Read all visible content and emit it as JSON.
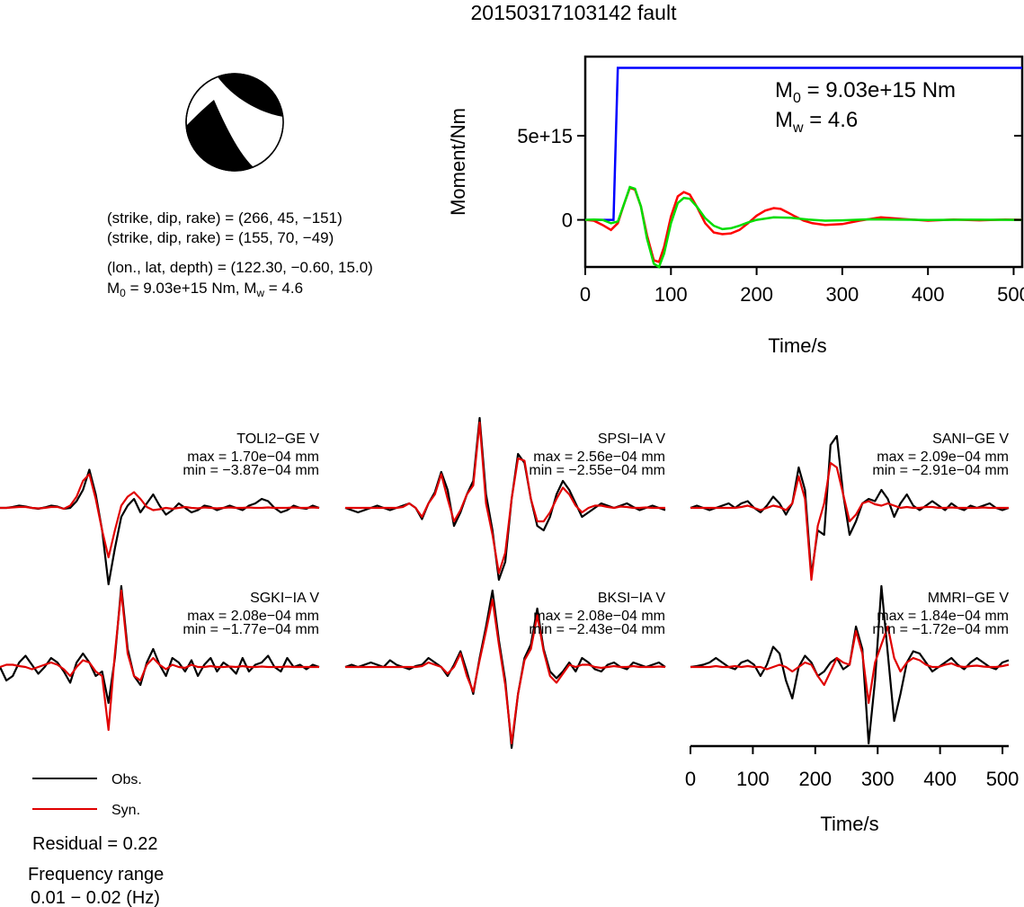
{
  "title": "20150317103142 fault",
  "mechanism": {
    "plane1": "(strike, dip, rake) = (266, 45, −151)",
    "plane2": "(strike, dip, rake) = (155, 70, −49)",
    "location": "(lon., lat, depth) = (122.30, −0.60, 15.0)",
    "m0_prefix": "M",
    "m0_sub": "0",
    "m0_value": " = 9.03e+15 Nm, M",
    "mw_sub": "w",
    "mw_value": " = 4.6",
    "strike": 266,
    "dip": 45,
    "rake": -151
  },
  "moment_panel": {
    "ylabel": "Moment/Nm",
    "xlabel": "Time/s",
    "m0_label": "M",
    "m0_sub": "0",
    "m0_text": " = 9.03e+15 Nm",
    "mw_label": "M",
    "mw_sub": "w",
    "mw_text": " = 4.6"
  },
  "chart_data": [
    {
      "type": "line",
      "title": "",
      "xlabel": "Time/s",
      "ylabel": "Moment/Nm",
      "xlim": [
        0,
        510
      ],
      "ylim": [
        -2800000000000000.0,
        9700000000000000.0
      ],
      "xticks": [
        "0",
        "100",
        "200",
        "300",
        "400",
        "500"
      ],
      "xtick_values": [
        0,
        100,
        200,
        300,
        400,
        500
      ],
      "yticks": [
        "0",
        "5e+15"
      ],
      "ytick_values": [
        0,
        5000000000000000.0
      ],
      "series": [
        {
          "color": "#0000ff",
          "x": [
            0,
            33,
            38,
            510
          ],
          "y": [
            0,
            0,
            9030000000000000.0,
            9030000000000000.0
          ]
        },
        {
          "color": "#ff0000",
          "x": [
            0,
            10,
            20,
            30,
            38,
            45,
            52,
            58,
            65,
            72,
            80,
            86,
            92,
            100,
            108,
            115,
            122,
            130,
            140,
            150,
            160,
            170,
            180,
            190,
            200,
            210,
            220,
            228,
            236,
            245,
            255,
            265,
            280,
            300,
            320,
            345,
            370,
            400,
            430,
            460,
            490,
            510
          ],
          "y": [
            0,
            -50000000000000.0,
            -300000000000000.0,
            -600000000000000.0,
            -200000000000000.0,
            900000000000000.0,
            1900000000000000.0,
            1800000000000000.0,
            800000000000000.0,
            -900000000000000.0,
            -2400000000000000.0,
            -2500000000000000.0,
            -1600000000000000.0,
            200000000000000.0,
            1400000000000000.0,
            1650000000000000.0,
            1500000000000000.0,
            800000000000000.0,
            -200000000000000.0,
            -750000000000000.0,
            -850000000000000.0,
            -800000000000000.0,
            -600000000000000.0,
            -200000000000000.0,
            250000000000000.0,
            550000000000000.0,
            700000000000000.0,
            650000000000000.0,
            450000000000000.0,
            200000000000000.0,
            -50000000000000.0,
            -200000000000000.0,
            -300000000000000.0,
            -250000000000000.0,
            -50000000000000.0,
            150000000000000.0,
            50000000000000.0,
            -50000000000000.0,
            20000000000000.0,
            -30000000000000.0,
            20000000000000.0,
            0
          ]
        },
        {
          "color": "#00dd00",
          "x": [
            0,
            10,
            20,
            30,
            38,
            45,
            52,
            58,
            65,
            72,
            80,
            86,
            92,
            100,
            108,
            115,
            122,
            130,
            140,
            150,
            160,
            170,
            180,
            190,
            200,
            220,
            240,
            260,
            280,
            300,
            330,
            360,
            400,
            450,
            510
          ],
          "y": [
            0,
            20000000000000.0,
            0.0,
            -200000000000000.0,
            -100000000000000.0,
            900000000000000.0,
            1950000000000000.0,
            1850000000000000.0,
            800000000000000.0,
            -1100000000000000.0,
            -2600000000000000.0,
            -2800000000000000.0,
            -2000000000000000.0,
            -200000000000000.0,
            1000000000000000.0,
            1300000000000000.0,
            1250000000000000.0,
            800000000000000.0,
            100000000000000.0,
            -350000000000000.0,
            -550000000000000.0,
            -500000000000000.0,
            -350000000000000.0,
            -150000000000000.0,
            0.0,
            150000000000000.0,
            120000000000000.0,
            20000000000000.0,
            -50000000000000.0,
            -30000000000000.0,
            30000000000000.0,
            20000000000000.0,
            -10000000000000.0,
            10000000000000.0,
            0
          ]
        }
      ]
    },
    {
      "type": "line",
      "title": "",
      "stations": [
        {
          "name": "TOLI2−GE V",
          "max": "max = 1.70e−04 mm",
          "min": "min = −3.87e−04 mm",
          "obs": [
            0,
            0,
            0.02,
            0.05,
            0.03,
            0,
            -0.02,
            0.01,
            0.05,
            0.03,
            -0.02,
            0,
            0.15,
            0.4,
            0.85,
            0.3,
            -0.5,
            -1.7,
            -0.9,
            -0.2,
            0.05,
            0.2,
            -0.1,
            0.1,
            0.3,
            0.05,
            -0.15,
            -0.05,
            0.1,
            0,
            -0.1,
            -0.05,
            0.05,
            0.02,
            -0.05,
            0,
            0.05,
            0,
            -0.05,
            0.05,
            0.1,
            0.2,
            0.15,
            0,
            -0.1,
            -0.05,
            0.05,
            0,
            -0.02,
            0.05,
            0
          ],
          "syn": [
            0,
            0,
            0.01,
            0.02,
            0.02,
            0,
            -0.01,
            0,
            0.02,
            0.02,
            -0.02,
            0.05,
            0.25,
            0.6,
            0.75,
            0.2,
            -0.5,
            -1.1,
            -0.5,
            0.05,
            0.25,
            0.35,
            0.2,
            0.02,
            -0.05,
            -0.03,
            0,
            -0.02,
            0,
            0.02,
            0,
            -0.01,
            0.01,
            0,
            -0.01,
            0,
            0.01,
            0,
            0,
            0.01,
            0,
            0,
            0.01,
            0,
            0,
            0,
            0.01,
            0,
            0,
            0.01,
            0
          ]
        },
        {
          "name": "SPSI−IA V",
          "max": "max = 2.56e−04 mm",
          "min": "min = −2.55e−04 mm",
          "obs": [
            0,
            -0.05,
            -0.1,
            -0.05,
            0,
            0.05,
            0,
            -0.05,
            0,
            0.05,
            0.1,
            0,
            -0.25,
            0.1,
            0.35,
            0.8,
            0.4,
            -0.4,
            -0.1,
            0.3,
            0.6,
            2.0,
            0.3,
            -0.5,
            -1.6,
            -1.2,
            0.2,
            1.2,
            1.0,
            0.2,
            -0.4,
            -0.5,
            -0.2,
            0.3,
            0.6,
            0.4,
            0.1,
            -0.2,
            -0.1,
            0,
            0.1,
            0.05,
            0,
            0.05,
            0.1,
            0.02,
            -0.05,
            0,
            0.05,
            0,
            -0.05
          ],
          "syn": [
            0,
            0,
            0,
            0,
            0,
            0,
            0,
            0,
            0,
            0.02,
            0.1,
            0,
            -0.2,
            0.1,
            0.3,
            0.75,
            0.2,
            -0.3,
            -0.05,
            0.3,
            0.5,
            1.9,
            0.1,
            -0.6,
            -1.45,
            -1.0,
            0.2,
            1.1,
            1.05,
            0.2,
            -0.3,
            -0.3,
            -0.1,
            0.2,
            0.45,
            0.3,
            0.05,
            -0.1,
            0,
            0.05,
            0.05,
            0.02,
            0,
            0.03,
            0.02,
            0,
            0,
            0.01,
            0,
            0,
            0
          ]
        },
        {
          "name": "SANI−GE V",
          "max": "max = 2.09e−04 mm",
          "min": "min = −2.91e−04 mm",
          "obs": [
            0,
            0.05,
            0,
            -0.05,
            0,
            0.05,
            0.1,
            0,
            0.1,
            0.15,
            0,
            -0.1,
            0.05,
            0.25,
            0.1,
            -0.15,
            0.1,
            0.9,
            0.4,
            -1.5,
            -0.5,
            -0.6,
            1.4,
            1.6,
            0.3,
            -0.6,
            -0.3,
            0.1,
            0.2,
            0.15,
            0.4,
            0.2,
            -0.2,
            0.1,
            0.3,
            0.05,
            -0.05,
            0.05,
            0.15,
            0.05,
            -0.05,
            0.1,
            0,
            -0.05,
            0.05,
            0,
            0.05,
            0.1,
            0,
            -0.05,
            0
          ],
          "syn": [
            0,
            0,
            0,
            0,
            0,
            0,
            0,
            0,
            0.02,
            0.05,
            0,
            -0.05,
            0,
            0.05,
            0.02,
            -0.05,
            0.1,
            0.7,
            0.2,
            -1.6,
            -0.4,
            0.1,
            1.0,
            0.9,
            0.3,
            -0.3,
            -0.15,
            0.1,
            0.15,
            0.08,
            0.05,
            0.1,
            0.05,
            0,
            0.02,
            0,
            0,
            0.02,
            0.02,
            0,
            0,
            0.01,
            0,
            0,
            0,
            0,
            0.01,
            0,
            0,
            0,
            0
          ]
        },
        {
          "name": "SGKI−IA V",
          "max": "max = 2.08e−04 mm",
          "min": "min = −1.77e−04 mm",
          "obs": [
            0,
            -0.3,
            -0.2,
            0.1,
            0.25,
            0.05,
            -0.15,
            0,
            0.2,
            0.1,
            -0.1,
            -0.35,
            0.1,
            0.3,
            0.1,
            -0.2,
            -0.1,
            -0.8,
            0.2,
            1.8,
            0.4,
            -0.2,
            -0.4,
            0.1,
            0.4,
            0.05,
            -0.2,
            0.2,
            0.1,
            -0.1,
            0.15,
            -0.2,
            0.05,
            0.2,
            -0.1,
            0.1,
            0,
            -0.15,
            0.2,
            -0.1,
            0.05,
            0.1,
            0.25,
            0.0,
            -0.1,
            0.2,
            0,
            0.05,
            -0.05,
            0.05,
            0
          ],
          "syn": [
            0,
            0.05,
            0.05,
            0.02,
            0,
            -0.05,
            0,
            0.05,
            0.1,
            0.05,
            -0.05,
            -0.2,
            0.0,
            0.15,
            0.1,
            -0.1,
            -0.2,
            -1.4,
            0.3,
            1.7,
            0.3,
            -0.2,
            -0.3,
            0.05,
            0.2,
            0.05,
            -0.05,
            0.05,
            0,
            -0.02,
            0.05,
            0,
            0,
            0.02,
            0,
            0,
            0.01,
            0,
            0.02,
            0,
            0,
            0.01,
            0,
            0,
            0,
            0.01,
            0,
            0,
            0,
            0,
            0
          ]
        },
        {
          "name": "BKSI−IA V",
          "max": "max = 2.08e−04 mm",
          "min": "min = −2.43e−04 mm",
          "obs": [
            0,
            0.05,
            0,
            0.05,
            0.1,
            0.05,
            0,
            0.15,
            0.05,
            0,
            -0.05,
            0.02,
            0.05,
            0.2,
            0.1,
            0,
            -0.2,
            0.05,
            0.35,
            -0.1,
            -0.6,
            0.2,
            0.9,
            1.7,
            0.6,
            -0.3,
            -1.8,
            -0.6,
            0.2,
            0.5,
            1.3,
            0.4,
            -0.1,
            -0.25,
            -0.1,
            0.1,
            -0.1,
            0.2,
            0.1,
            -0.05,
            -0.1,
            0.05,
            0.1,
            0,
            -0.05,
            0.1,
            0.05,
            0,
            0.05,
            0.1,
            0
          ],
          "syn": [
            0,
            0,
            0,
            0,
            0,
            0,
            0,
            0,
            0,
            0,
            0,
            0,
            0.02,
            0.1,
            0.05,
            0,
            -0.15,
            0,
            0.3,
            -0.2,
            -0.55,
            0.15,
            0.8,
            1.5,
            0.5,
            -0.4,
            -1.7,
            -0.6,
            0.15,
            0.4,
            1.15,
            0.35,
            -0.2,
            -0.35,
            -0.15,
            0.05,
            0,
            0.05,
            0.05,
            0,
            -0.02,
            0,
            0.02,
            0,
            0,
            0.02,
            0,
            0,
            0,
            0.01,
            0
          ]
        },
        {
          "name": "MMRI−GE V",
          "max": "max = 1.84e−04 mm",
          "min": "min = −1.72e−04 mm",
          "obs": [
            0,
            0.02,
            0.05,
            0.1,
            0.2,
            0.1,
            0,
            -0.05,
            0.1,
            0.15,
            0.05,
            -0.2,
            0.05,
            0.45,
            0.3,
            -0.3,
            -0.7,
            0,
            0.25,
            0.1,
            -0.2,
            -0.1,
            0.1,
            0.2,
            -0.05,
            0.05,
            0.9,
            0.4,
            -1.7,
            -0.3,
            1.8,
            0.3,
            -1.2,
            -0.6,
            0.1,
            0.35,
            0.3,
            0.1,
            -0.1,
            0,
            0.1,
            0.2,
            0.05,
            -0.05,
            0.1,
            0.2,
            0.1,
            0,
            -0.05,
            0.1,
            0.15
          ],
          "syn": [
            0,
            0,
            0,
            0,
            0.02,
            0,
            0,
            0.02,
            0,
            0.02,
            0,
            0,
            -0.05,
            0,
            0.05,
            0,
            -0.1,
            0,
            0.1,
            0.05,
            -0.2,
            -0.4,
            -0.1,
            0.2,
            0.1,
            0.05,
            0.8,
            0.3,
            -0.8,
            0.1,
            0.5,
            0.9,
            0.2,
            -0.1,
            0.1,
            0.2,
            0.15,
            0.05,
            0,
            0,
            0.05,
            0.08,
            0.02,
            0,
            0.02,
            0.03,
            0.01,
            0,
            0,
            0.02,
            0.05
          ]
        }
      ]
    },
    {
      "type": "line",
      "title": "",
      "xlabel": "Time/s",
      "xlim": [
        0,
        510
      ],
      "xticks": [
        "0",
        "100",
        "200",
        "300",
        "400",
        "500"
      ],
      "xtick_values": [
        0,
        100,
        200,
        300,
        400,
        500
      ]
    }
  ],
  "legend": {
    "obs_label": "Obs.",
    "syn_label": "Syn.",
    "obs_color": "#000000",
    "syn_color": "#e00000"
  },
  "footer": {
    "residual": "Residual = 0.22",
    "freq_title": "Frequency range",
    "freq_value": "0.01 − 0.02 (Hz)"
  },
  "colors": {
    "moment": "#0000ff",
    "stf_red": "#ff0000",
    "stf_green": "#00dd00",
    "obs": "#000000",
    "syn": "#e00000"
  }
}
